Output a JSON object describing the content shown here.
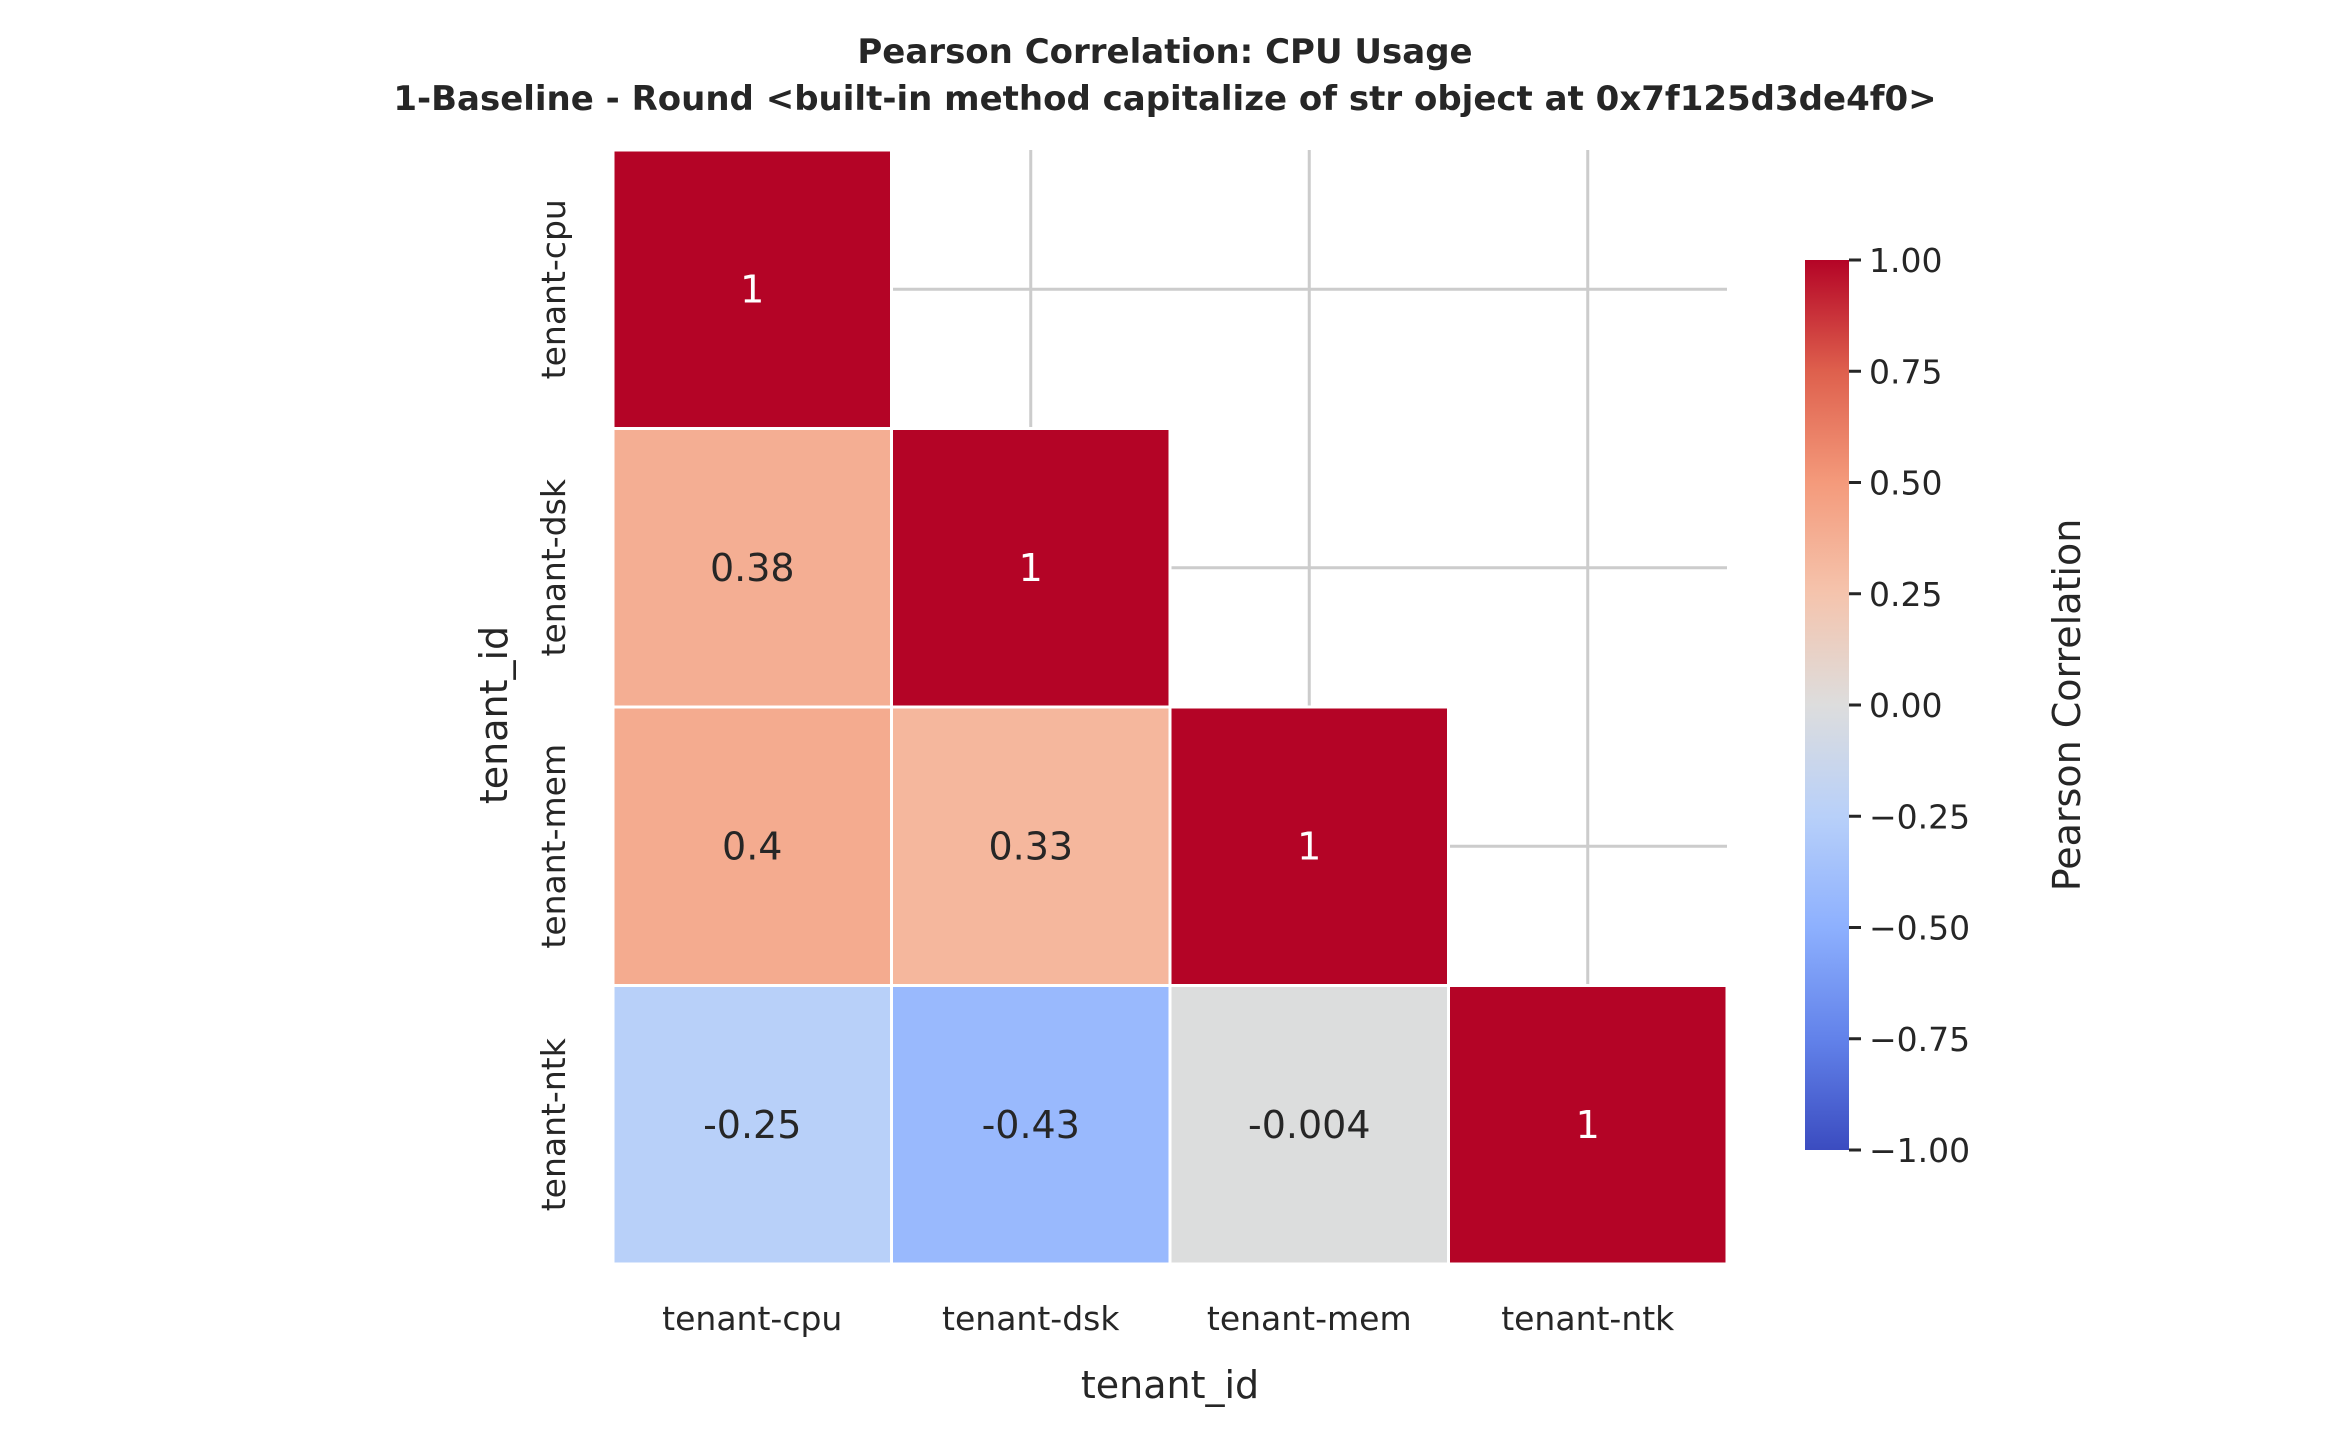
{
  "chart_data": {
    "type": "heatmap",
    "title": "Pearson Correlation: CPU Usage",
    "subtitle": "1-Baseline - Round <built-in method capitalize of str object at 0x7f125d3de4f0>",
    "xlabel": "tenant_id",
    "ylabel": "tenant_id",
    "x_categories": [
      "tenant-cpu",
      "tenant-dsk",
      "tenant-mem",
      "tenant-ntk"
    ],
    "y_categories": [
      "tenant-cpu",
      "tenant-dsk",
      "tenant-mem",
      "tenant-ntk"
    ],
    "matrix": [
      [
        1,
        null,
        null,
        null
      ],
      [
        0.38,
        1,
        null,
        null
      ],
      [
        0.4,
        0.33,
        1,
        null
      ],
      [
        -0.25,
        -0.43,
        -0.004,
        1
      ]
    ],
    "cell_labels": [
      [
        "1",
        "",
        "",
        ""
      ],
      [
        "0.38",
        "1",
        "",
        ""
      ],
      [
        "0.4",
        "0.33",
        "1",
        ""
      ],
      [
        "-0.25",
        "-0.43",
        "-0.004",
        "1"
      ]
    ],
    "mask": "upper-triangle",
    "colormap": "coolwarm",
    "vmin": -1,
    "vmax": 1,
    "grid": true,
    "colorbar": {
      "label": "Pearson Correlation",
      "ticks": [
        "1.00",
        "0.75",
        "0.50",
        "0.25",
        "0.00",
        "−0.25",
        "−0.50",
        "−0.75",
        "−1.00"
      ],
      "tick_values": [
        1.0,
        0.75,
        0.5,
        0.25,
        0.0,
        -0.25,
        -0.5,
        -0.75,
        -1.0
      ]
    }
  }
}
